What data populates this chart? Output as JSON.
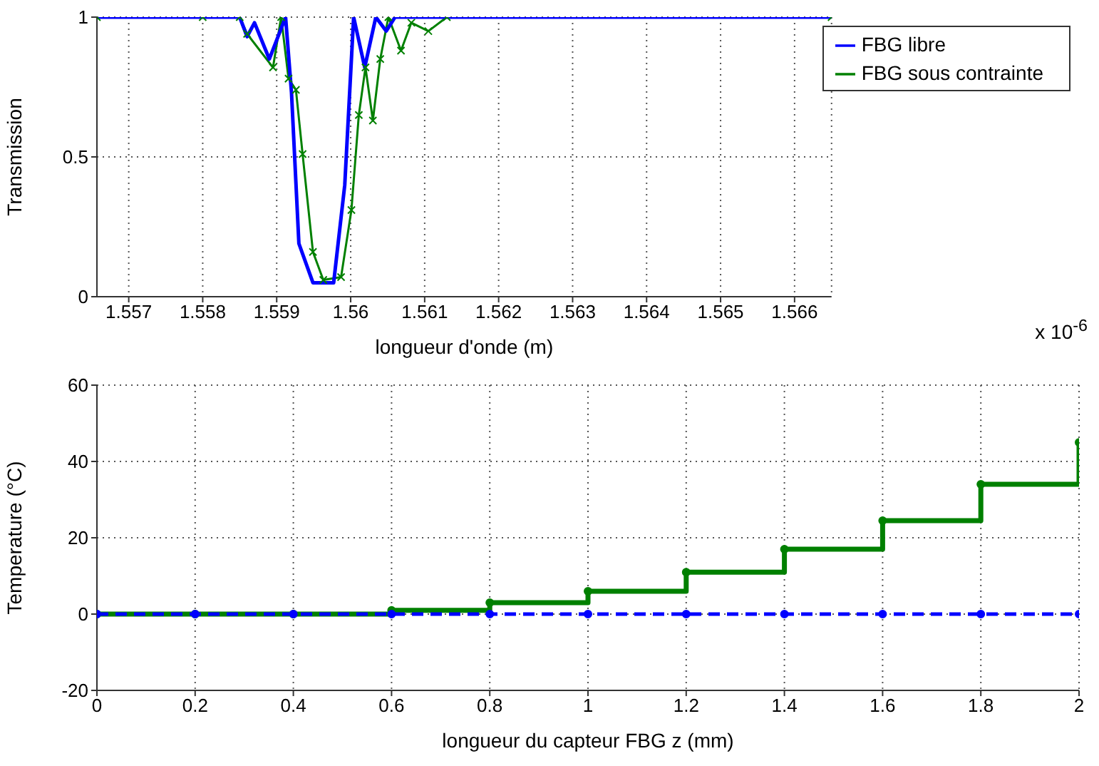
{
  "chart_data": [
    {
      "type": "line",
      "xlabel": "longueur d'onde (m)",
      "ylabel": "Transmission",
      "annotations": [
        "x 10$^{-6}$"
      ],
      "xlim": [
        1.55657,
        1.5665
      ],
      "xticks": [
        1.557,
        1.558,
        1.559,
        1.56,
        1.561,
        1.562,
        1.563,
        1.564,
        1.565,
        1.566
      ],
      "ylim": [
        0,
        1
      ],
      "yticks": [
        0,
        0.5,
        1
      ],
      "grid": true,
      "legend": "top right",
      "series": [
        {
          "name": "FBG libre",
          "color": "#0000ff",
          "marker": "none",
          "x": [
            1.55657,
            1.558,
            1.5585,
            1.5586,
            1.5587,
            1.5589,
            1.55912,
            1.5592,
            1.5593,
            1.55949,
            1.55977,
            1.55992,
            1.56004,
            1.56019,
            1.56034,
            1.56048,
            1.5606,
            1.5665
          ],
          "values": [
            1,
            1,
            1,
            0.93,
            0.98,
            0.85,
            1,
            0.73,
            0.19,
            0.05,
            0.05,
            0.4,
            1,
            0.82,
            1,
            0.95,
            1,
            1
          ]
        },
        {
          "name": "FBG sous contrainte",
          "color": "#008000",
          "marker": "cross",
          "x": [
            1.55657,
            1.558,
            1.5585,
            1.5586,
            1.55895,
            1.55906,
            1.55916,
            1.55926,
            1.55935,
            1.55949,
            1.55963,
            1.55987,
            1.56001,
            1.56011,
            1.5602,
            1.5603,
            1.5604,
            1.56051,
            1.56068,
            1.56082,
            1.56105,
            1.5613,
            1.5665
          ],
          "values": [
            1,
            1,
            1,
            0.94,
            0.82,
            1,
            0.78,
            0.74,
            0.51,
            0.16,
            0.06,
            0.07,
            0.31,
            0.65,
            0.82,
            0.63,
            0.85,
            1,
            0.88,
            0.98,
            0.95,
            1,
            1
          ]
        }
      ]
    },
    {
      "type": "step",
      "xlabel": "longueur du capteur FBG z (mm)",
      "ylabel": "Temperature (°C)",
      "xlim": [
        0,
        2
      ],
      "xticks": [
        0,
        0.2,
        0.4,
        0.6,
        0.8,
        1,
        1.2,
        1.4,
        1.6,
        1.8,
        2
      ],
      "ylim": [
        -20,
        60
      ],
      "yticks": [
        -20,
        0,
        20,
        40,
        60
      ],
      "grid": true,
      "legend": false,
      "series": [
        {
          "color": "#0000ff",
          "line_style": "dashed",
          "marker": "circle",
          "x": [
            0,
            0.2,
            0.4,
            0.6,
            0.8,
            1,
            1.2,
            1.4,
            1.6,
            1.8,
            2
          ],
          "values": [
            0,
            0,
            0,
            0,
            0,
            0,
            0,
            0,
            0,
            0,
            0
          ]
        },
        {
          "color": "#008000",
          "line_style": "solid",
          "marker": "circle",
          "x": [
            0,
            0.2,
            0.4,
            0.6,
            0.8,
            1,
            1.2,
            1.4,
            1.6,
            1.8,
            2
          ],
          "values": [
            0,
            0,
            0,
            1,
            3,
            6,
            11,
            17,
            24.5,
            34,
            45
          ]
        }
      ]
    }
  ]
}
